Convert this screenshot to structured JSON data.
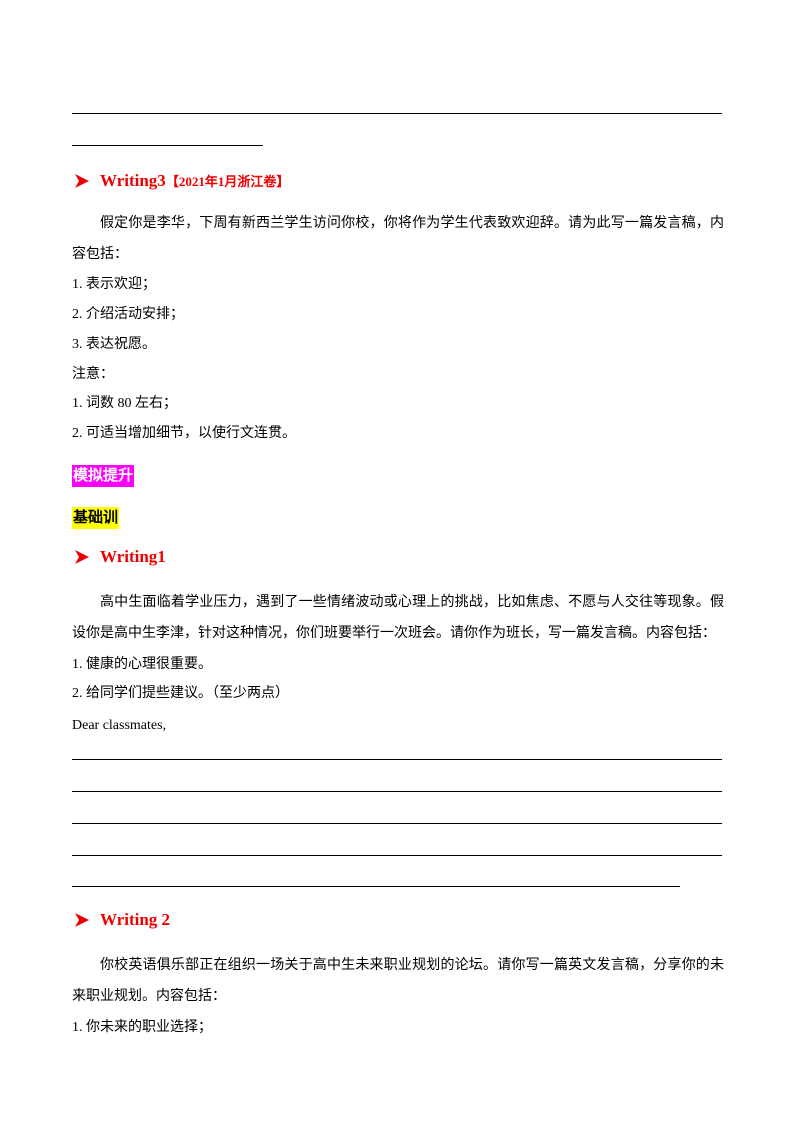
{
  "writing3": {
    "heading": "Writing3",
    "source": "【2021年1月浙江卷】",
    "prompt": "假定你是李华，下周有新西兰学生访问你校，你将作为学生代表致欢迎辞。请为此写一篇发言稿，内容包括：",
    "items": [
      "1. 表示欢迎；",
      "2. 介绍活动安排；",
      "3. 表达祝愿。"
    ],
    "note_label": "注意：",
    "notes": [
      "1. 词数 80 左右；",
      "2. 可适当增加细节，以使行文连贯。"
    ]
  },
  "section_title": "模拟提升",
  "subsection_title": "基础训",
  "writing1": {
    "heading": "Writing1",
    "prompt": "高中生面临着学业压力，遇到了一些情绪波动或心理上的挑战，比如焦虑、不愿与人交往等现象。假设你是高中生李津，针对这种情况，你们班要举行一次班会。请你作为班长，写一篇发言稿。内容包括：",
    "items": [
      "1. 健康的心理很重要。",
      "2. 给同学们提些建议。（至少两点）"
    ],
    "salutation": "Dear classmates,"
  },
  "writing2": {
    "heading": "Writing 2",
    "prompt": "你校英语俱乐部正在组织一场关于高中生未来职业规划的论坛。请你写一篇英文发言稿，分享你的未来职业规划。内容包括：",
    "items": [
      "1. 你未来的职业选择；"
    ]
  }
}
